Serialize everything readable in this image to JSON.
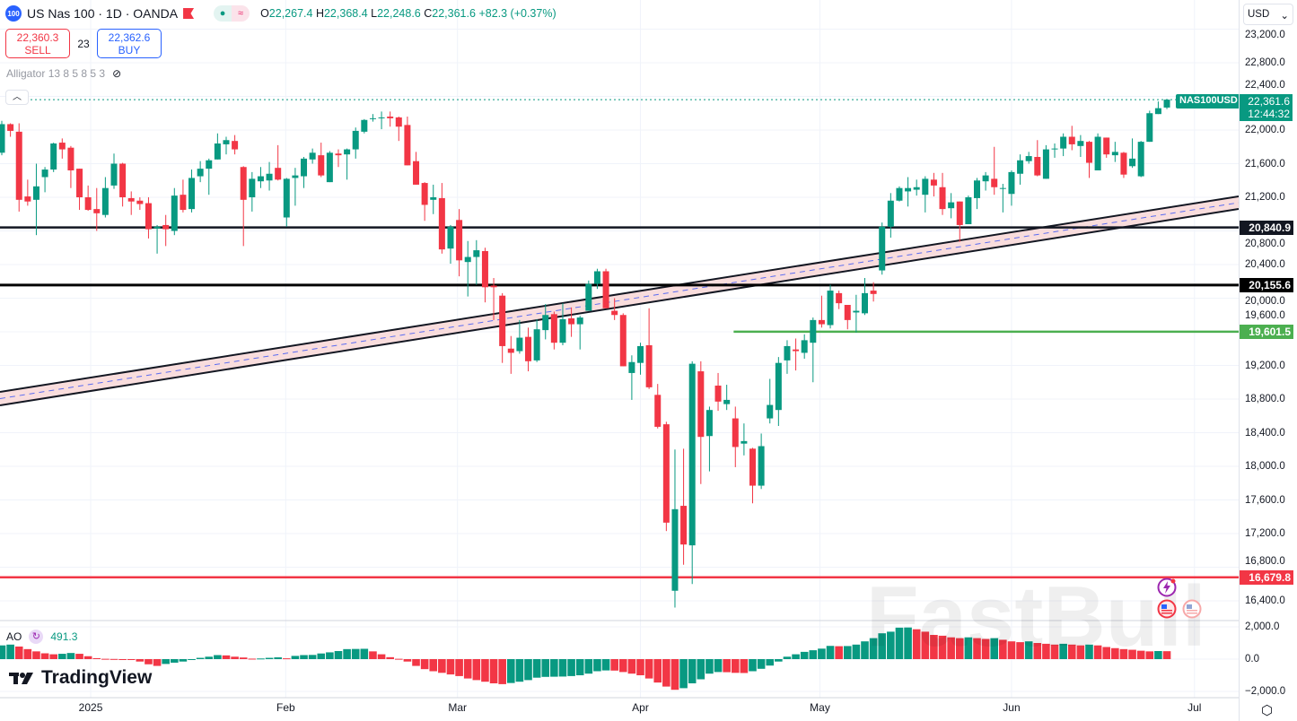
{
  "header": {
    "logo_text": "100",
    "title": "US Nas 100 · 1D · OANDA",
    "ohlc": {
      "o_label": "O",
      "o": "22,267.4",
      "h_label": "H",
      "h": "22,368.4",
      "l_label": "L",
      "l": "22,248.6",
      "c_label": "C",
      "c": "22,361.6",
      "change": "+82.3 (+0.37%)"
    }
  },
  "trade": {
    "sell_price": "22,360.3",
    "sell_label": "SELL",
    "spread": "23",
    "buy_price": "22,362.6",
    "buy_label": "BUY"
  },
  "indicator": {
    "name": "Alligator 13 8 5 8 5 3"
  },
  "ao": {
    "name": "AO",
    "value": "491.3"
  },
  "currency": "USD",
  "symbol_tag": "NAS100USD",
  "current_price": "22,361.6",
  "countdown": "12:44:32",
  "watermark": "FastBull",
  "brand": "TradingView",
  "colors": {
    "up": "#089981",
    "down": "#f23645",
    "support_black": "#131722",
    "green_line": "#4caf50",
    "red_line": "#f23645"
  },
  "chart_data": {
    "type": "candlestick",
    "title": "US Nas 100 · 1D · OANDA",
    "ylim": [
      16100,
      23400
    ],
    "yticks": [
      16400,
      16800,
      17200,
      17600,
      18000,
      18400,
      18800,
      19200,
      19600,
      20000,
      20400,
      20800,
      21200,
      21600,
      22000,
      22400,
      22800,
      23200
    ],
    "ytick_labels": [
      "16,400.0",
      "16,800.0",
      "17,200.0",
      "17,600.0",
      "18,000.0",
      "18,400.0",
      "18,800.0",
      "19,200.0",
      "19,600.0",
      "20,000.0",
      "20,400.0",
      "20,800.0",
      "21,200.0",
      "21,600.0",
      "22,000.0",
      "22,400.0",
      "22,800.0",
      "23,200.0"
    ],
    "xticks": [
      {
        "label": "2025",
        "index": 10.3
      },
      {
        "label": "Feb",
        "index": 32.9
      },
      {
        "label": "Mar",
        "index": 52.8
      },
      {
        "label": "Apr",
        "index": 74
      },
      {
        "label": "May",
        "index": 94.8
      },
      {
        "label": "Jun",
        "index": 117
      },
      {
        "label": "Jul",
        "index": 138.2
      }
    ],
    "hlines": [
      {
        "price": 20840.9,
        "label": "20,840.9",
        "color": "#131722"
      },
      {
        "price": 20155.6,
        "label": "20,155.6",
        "color": "#000000"
      },
      {
        "price": 19601.5,
        "label": "19,601.5",
        "color": "#4caf50",
        "from_index": 84.8
      },
      {
        "price": 16679.8,
        "label": "16,679.8",
        "color": "#f23645"
      }
    ],
    "ohlc": [
      [
        21730,
        22110,
        21700,
        22070
      ],
      [
        22070,
        22080,
        21920,
        21990
      ],
      [
        21980,
        22080,
        21030,
        21170
      ],
      [
        21210,
        21410,
        21100,
        21150
      ],
      [
        21170,
        21600,
        20750,
        21330
      ],
      [
        21440,
        21560,
        21260,
        21530
      ],
      [
        21530,
        21850,
        21500,
        21840
      ],
      [
        21850,
        21900,
        21660,
        21770
      ],
      [
        21790,
        21810,
        21310,
        21520
      ],
      [
        21540,
        21540,
        21050,
        21200
      ],
      [
        21200,
        21340,
        21040,
        21050
      ],
      [
        21060,
        21310,
        20800,
        21010
      ],
      [
        20990,
        21440,
        20960,
        21310
      ],
      [
        21340,
        21720,
        21300,
        21600
      ],
      [
        21600,
        21610,
        21090,
        21200
      ],
      [
        21190,
        21270,
        20990,
        21150
      ],
      [
        21160,
        21200,
        21050,
        21120
      ],
      [
        21130,
        21200,
        20710,
        20820
      ],
      [
        20830,
        20870,
        20530,
        20850
      ],
      [
        20870,
        20990,
        20620,
        20820
      ],
      [
        20800,
        21310,
        20750,
        21220
      ],
      [
        21230,
        21410,
        21020,
        21050
      ],
      [
        21060,
        21530,
        21020,
        21430
      ],
      [
        21450,
        21630,
        21380,
        21540
      ],
      [
        21540,
        21660,
        21230,
        21640
      ],
      [
        21650,
        21960,
        21650,
        21840
      ],
      [
        21830,
        21920,
        21710,
        21880
      ],
      [
        21870,
        21940,
        21710,
        21770
      ],
      [
        21560,
        21570,
        20620,
        21170
      ],
      [
        21200,
        21500,
        21030,
        21420
      ],
      [
        21390,
        21560,
        21310,
        21450
      ],
      [
        21400,
        21620,
        21280,
        21480
      ],
      [
        21550,
        21820,
        21400,
        21410
      ],
      [
        20960,
        21430,
        20850,
        21420
      ],
      [
        21430,
        21550,
        21100,
        21460
      ],
      [
        21450,
        21680,
        21310,
        21660
      ],
      [
        21650,
        21780,
        21600,
        21730
      ],
      [
        21700,
        21850,
        21440,
        21460
      ],
      [
        21380,
        21750,
        21380,
        21730
      ],
      [
        21720,
        21770,
        21560,
        21700
      ],
      [
        21710,
        21780,
        21410,
        21770
      ],
      [
        21770,
        22030,
        21660,
        21990
      ],
      [
        21980,
        22130,
        21960,
        22120
      ],
      [
        22130,
        22190,
        22100,
        22140
      ],
      [
        22140,
        22220,
        22010,
        22150
      ],
      [
        22160,
        22220,
        22040,
        22140
      ],
      [
        22150,
        22160,
        21870,
        22040
      ],
      [
        22060,
        22160,
        21580,
        21580
      ],
      [
        21630,
        21740,
        21350,
        21350
      ],
      [
        21370,
        21380,
        20920,
        21110
      ],
      [
        21170,
        21350,
        21000,
        21200
      ],
      [
        21190,
        21370,
        20530,
        20580
      ],
      [
        20590,
        20870,
        20410,
        20850
      ],
      [
        20930,
        21060,
        20260,
        20450
      ],
      [
        20430,
        20680,
        20020,
        20490
      ],
      [
        20490,
        20690,
        20160,
        20570
      ],
      [
        20560,
        20600,
        19950,
        20130
      ],
      [
        20150,
        20240,
        19740,
        20130
      ],
      [
        20030,
        20060,
        19230,
        19430
      ],
      [
        19400,
        19550,
        19100,
        19350
      ],
      [
        19370,
        19740,
        19340,
        19530
      ],
      [
        19540,
        19650,
        19130,
        19250
      ],
      [
        19260,
        19750,
        19240,
        19630
      ],
      [
        19620,
        19930,
        19510,
        19800
      ],
      [
        19810,
        19840,
        19390,
        19470
      ],
      [
        19470,
        19940,
        19440,
        19750
      ],
      [
        19760,
        19890,
        19540,
        19690
      ],
      [
        19690,
        19790,
        19390,
        19770
      ],
      [
        19850,
        20210,
        19850,
        20170
      ],
      [
        20170,
        20350,
        20110,
        20320
      ],
      [
        20320,
        20350,
        19880,
        19880
      ],
      [
        19850,
        20000,
        19740,
        19800
      ],
      [
        19800,
        19820,
        19190,
        19190
      ],
      [
        19110,
        19320,
        18790,
        19240
      ],
      [
        19230,
        19470,
        19090,
        19430
      ],
      [
        19440,
        19880,
        18920,
        18940
      ],
      [
        18850,
        18980,
        18450,
        18470
      ],
      [
        18500,
        18530,
        17230,
        17330
      ],
      [
        16520,
        18200,
        16320,
        17490
      ],
      [
        17530,
        18210,
        16830,
        17070
      ],
      [
        17060,
        19250,
        16600,
        19220
      ],
      [
        19130,
        19250,
        17790,
        18350
      ],
      [
        18360,
        18710,
        17940,
        18670
      ],
      [
        18960,
        19110,
        18660,
        18770
      ],
      [
        18740,
        18970,
        18670,
        18790
      ],
      [
        18570,
        18710,
        17990,
        18230
      ],
      [
        18270,
        18510,
        18130,
        18300
      ],
      [
        18210,
        18220,
        17560,
        17770
      ],
      [
        17770,
        18390,
        17730,
        18240
      ],
      [
        18570,
        19040,
        18510,
        18730
      ],
      [
        18670,
        19300,
        18480,
        19230
      ],
      [
        19260,
        19500,
        19100,
        19430
      ],
      [
        19390,
        19520,
        19140,
        19370
      ],
      [
        19350,
        19570,
        19280,
        19500
      ],
      [
        19470,
        19770,
        19000,
        19740
      ],
      [
        19740,
        20030,
        19650,
        19690
      ],
      [
        19680,
        20160,
        19640,
        20090
      ],
      [
        20060,
        20090,
        19870,
        19940
      ],
      [
        19920,
        19920,
        19630,
        19740
      ],
      [
        19830,
        20040,
        19590,
        19850
      ],
      [
        19820,
        20240,
        19800,
        20060
      ],
      [
        20090,
        20190,
        19960,
        20050
      ],
      [
        20330,
        20900,
        20280,
        20850
      ],
      [
        20850,
        21250,
        20720,
        21160
      ],
      [
        21160,
        21330,
        21150,
        21310
      ],
      [
        21270,
        21440,
        21090,
        21310
      ],
      [
        21290,
        21410,
        21220,
        21320
      ],
      [
        21230,
        21450,
        21020,
        21420
      ],
      [
        21410,
        21490,
        21210,
        21340
      ],
      [
        21320,
        21490,
        20990,
        21060
      ],
      [
        21070,
        21250,
        20950,
        21140
      ],
      [
        21150,
        21150,
        20670,
        20870
      ],
      [
        20880,
        21220,
        20880,
        21200
      ],
      [
        21190,
        21430,
        21060,
        21400
      ],
      [
        21390,
        21500,
        21280,
        21460
      ],
      [
        21420,
        21800,
        21230,
        21320
      ],
      [
        21300,
        21360,
        21020,
        21310
      ],
      [
        21240,
        21520,
        21100,
        21500
      ],
      [
        21480,
        21710,
        21350,
        21640
      ],
      [
        21630,
        21740,
        21600,
        21690
      ],
      [
        21680,
        21880,
        21450,
        21460
      ],
      [
        21420,
        21820,
        21420,
        21770
      ],
      [
        21770,
        21840,
        21670,
        21780
      ],
      [
        21780,
        21960,
        21690,
        21920
      ],
      [
        21920,
        22050,
        21760,
        21830
      ],
      [
        21810,
        21940,
        21680,
        21870
      ],
      [
        21860,
        21870,
        21430,
        21610
      ],
      [
        21520,
        21960,
        21520,
        21920
      ],
      [
        21910,
        21910,
        21670,
        21710
      ],
      [
        21700,
        21860,
        21620,
        21740
      ],
      [
        21730,
        21740,
        21430,
        21470
      ],
      [
        21570,
        21900,
        21550,
        21660
      ],
      [
        21450,
        21870,
        21440,
        21860
      ],
      [
        21860,
        22230,
        21860,
        22200
      ],
      [
        22190,
        22340,
        22190,
        22260
      ],
      [
        22267.4,
        22368.4,
        22248.6,
        22361.6
      ]
    ],
    "ao_ylim": [
      -2300,
      2400
    ],
    "ao_yticks": [
      2000,
      0,
      -2000
    ],
    "ao_ytick_labels": [
      "2,000.0",
      "0.0",
      "−2,000.0"
    ],
    "ao_values": [
      850,
      900,
      780,
      620,
      480,
      360,
      300,
      330,
      380,
      330,
      180,
      60,
      20,
      10,
      0,
      -30,
      -150,
      -320,
      -420,
      -300,
      -220,
      -150,
      -50,
      80,
      150,
      250,
      230,
      150,
      100,
      30,
      40,
      80,
      110,
      50,
      200,
      250,
      260,
      350,
      420,
      500,
      620,
      630,
      640,
      480,
      300,
      120,
      20,
      -150,
      -420,
      -620,
      -750,
      -850,
      -950,
      -1050,
      -1200,
      -1300,
      -1400,
      -1500,
      -1550,
      -1480,
      -1400,
      -1300,
      -1150,
      -1100,
      -1090,
      -1080,
      -1050,
      -1000,
      -900,
      -750,
      -700,
      -710,
      -800,
      -900,
      -1000,
      -1200,
      -1450,
      -1700,
      -1900,
      -1800,
      -1500,
      -1250,
      -900,
      -800,
      -810,
      -850,
      -860,
      -750,
      -600,
      -400,
      -150,
      150,
      300,
      450,
      550,
      650,
      820,
      800,
      810,
      900,
      1100,
      1300,
      1600,
      1700,
      1950,
      1960,
      1850,
      1700,
      1500,
      1450,
      1350,
      1300,
      1350,
      1300,
      1250,
      1300,
      1200,
      1100,
      1050,
      1100,
      1000,
      950,
      900,
      950,
      900,
      850,
      900,
      850,
      750,
      680,
      620,
      580,
      520,
      480,
      500,
      491.3
    ]
  }
}
